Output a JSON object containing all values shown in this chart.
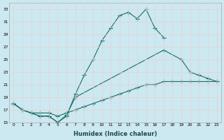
{
  "xlabel": "Humidex (Indice chaleur)",
  "bg_color": "#cce8f0",
  "grid_color": "#aacccc",
  "line_color": "#1a6e6a",
  "line1_x": [
    0,
    1,
    2,
    3,
    4,
    5,
    6,
    7,
    8,
    9,
    10,
    11,
    12,
    13,
    14,
    15,
    16,
    17
  ],
  "line1_y": [
    18,
    17,
    16.5,
    16,
    16,
    15,
    16,
    19.5,
    22.5,
    25,
    28,
    30,
    32,
    32.5,
    31.5,
    33,
    30,
    28.5
  ],
  "line2_x": [
    0,
    1,
    2,
    3,
    4,
    5,
    6,
    7,
    17,
    19,
    20,
    21,
    22,
    23
  ],
  "line2_y": [
    18,
    17,
    16.5,
    16,
    16,
    15,
    16.2,
    19,
    26.5,
    25,
    23,
    22.5,
    22,
    21.5
  ],
  "line3_x": [
    0,
    1,
    2,
    3,
    4,
    5,
    6,
    7,
    8,
    9,
    10,
    11,
    12,
    13,
    14,
    15,
    16,
    17,
    18,
    19,
    20,
    21,
    22,
    23
  ],
  "line3_y": [
    18,
    17,
    16.5,
    16.5,
    16.5,
    16,
    16.5,
    17,
    17.5,
    18,
    18.5,
    19,
    19.5,
    20,
    20.5,
    21,
    21,
    21.5,
    21.5,
    21.5,
    21.5,
    21.5,
    21.5,
    21.5
  ],
  "ylim": [
    15,
    34
  ],
  "xlim": [
    -0.5,
    23.5
  ],
  "yticks": [
    15,
    17,
    19,
    21,
    23,
    25,
    27,
    29,
    31,
    33
  ],
  "xticks": [
    0,
    1,
    2,
    3,
    4,
    5,
    6,
    7,
    8,
    9,
    10,
    11,
    12,
    13,
    14,
    15,
    16,
    17,
    18,
    19,
    20,
    21,
    22,
    23
  ]
}
